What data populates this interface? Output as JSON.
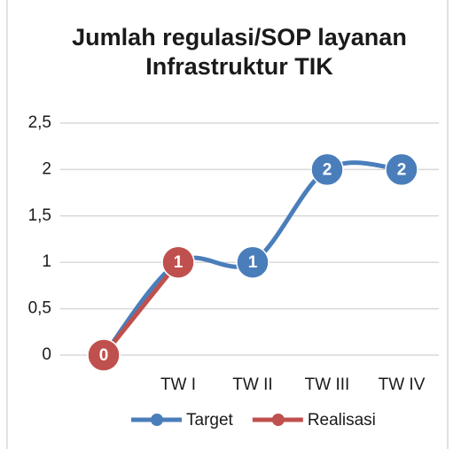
{
  "chart_data": {
    "type": "line",
    "title": "Jumlah regulasi/SOP layanan Infrastruktur TIK",
    "categories": [
      null,
      "TW I",
      "TW II",
      "TW III",
      "TW IV"
    ],
    "series": [
      {
        "name": "Target",
        "color": "#4a7ebb",
        "values": [
          0,
          1,
          1,
          2,
          2
        ]
      },
      {
        "name": "Realisasi",
        "color": "#c0504d",
        "values": [
          0,
          1,
          null,
          null,
          null
        ]
      }
    ],
    "ylim": [
      0,
      2.5
    ],
    "yticks": [
      0,
      {
        "value": 0.5,
        "label": "0,5"
      },
      1,
      {
        "value": 1.5,
        "label": "1,5"
      },
      2,
      {
        "value": 2.5,
        "label": "2,5"
      }
    ],
    "grid": true,
    "legend": "bottom"
  }
}
